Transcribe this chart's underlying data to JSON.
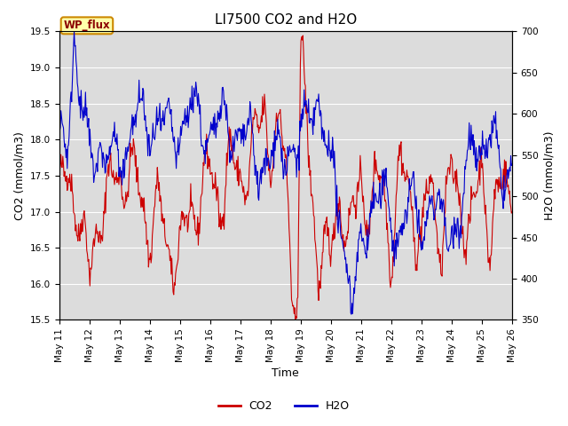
{
  "title": "LI7500 CO2 and H2O",
  "xlabel": "Time",
  "ylabel_left": "CO2 (mmol/m3)",
  "ylabel_right": "H2O (mmol/m3)",
  "co2_ylim": [
    15.5,
    19.5
  ],
  "h2o_ylim": [
    350,
    700
  ],
  "co2_yticks": [
    15.5,
    16.0,
    16.5,
    17.0,
    17.5,
    18.0,
    18.5,
    19.0,
    19.5
  ],
  "h2o_yticks": [
    350,
    400,
    450,
    500,
    550,
    600,
    650,
    700
  ],
  "xtick_labels": [
    "May 11",
    "May 12",
    "May 13",
    "May 14",
    "May 15",
    "May 16",
    "May 17",
    "May 18",
    "May 19",
    "May 20",
    "May 21",
    "May 22",
    "May 23",
    "May 24",
    "May 25",
    "May 26"
  ],
  "co2_color": "#cc0000",
  "h2o_color": "#0000cc",
  "background_color": "#dcdcdc",
  "fig_background": "#ffffff",
  "annotation_text": "WP_flux",
  "annotation_bg": "#ffffaa",
  "annotation_border": "#cc8800",
  "legend_co2": "CO2",
  "legend_h2o": "H2O",
  "title_fontsize": 11,
  "axis_label_fontsize": 9,
  "tick_fontsize": 7.5,
  "legend_fontsize": 9
}
